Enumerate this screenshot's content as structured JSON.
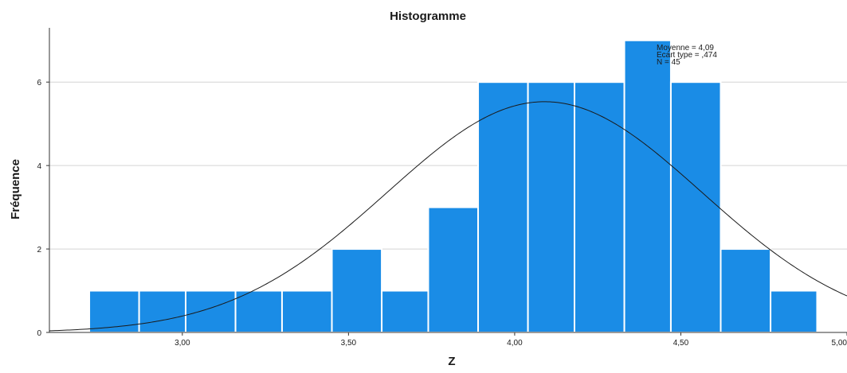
{
  "chart_data": {
    "type": "bar",
    "title": "Histogramme",
    "xlabel": "Z",
    "ylabel": "Fréquence",
    "bin_edges": [
      2.72,
      2.87,
      3.01,
      3.16,
      3.3,
      3.45,
      3.6,
      3.74,
      3.89,
      4.04,
      4.18,
      4.33,
      4.47,
      4.62,
      4.77,
      4.91
    ],
    "values": [
      1,
      1,
      1,
      1,
      1,
      2,
      1,
      3,
      6,
      6,
      6,
      7,
      6,
      2,
      1
    ],
    "xlim": [
      2.6,
      5.0
    ],
    "ylim": [
      0,
      7.3
    ],
    "x_ticks": [
      3.0,
      3.5,
      4.0,
      4.5,
      5.0
    ],
    "x_tick_labels": [
      "3,00",
      "3,50",
      "4,00",
      "4,50",
      "5,00"
    ],
    "y_ticks": [
      0,
      2,
      4,
      6
    ],
    "y_tick_labels": [
      "0",
      "2",
      "4",
      "6"
    ],
    "grid": "horizontal",
    "bar_color": "#1a8ce6",
    "normal_curve": {
      "mean": 4.09,
      "sd": 0.474,
      "n": 45
    },
    "stats": [
      "Moyenne = 4,09",
      "Ecart type = ,474",
      "N = 45"
    ]
  }
}
